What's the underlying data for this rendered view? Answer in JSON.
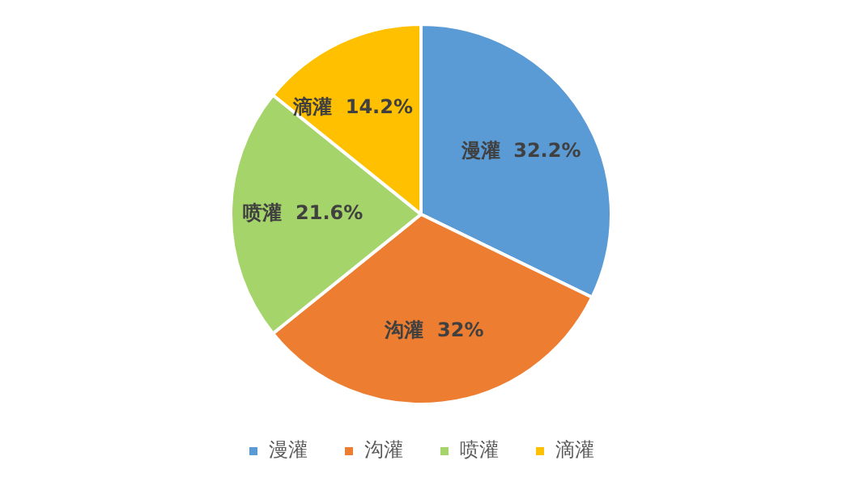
{
  "chart_data": {
    "type": "pie",
    "categories": [
      "漫灌",
      "沟灌",
      "喷灌",
      "滴灌"
    ],
    "values": [
      32.2,
      32,
      21.6,
      14.2
    ],
    "colors": [
      "#5b9bd5",
      "#ed7d31",
      "#a5d46a",
      "#ffc000"
    ],
    "value_labels": [
      "32.2%",
      "32%",
      "21.6%",
      "14.2%"
    ],
    "legend": "bottom"
  }
}
